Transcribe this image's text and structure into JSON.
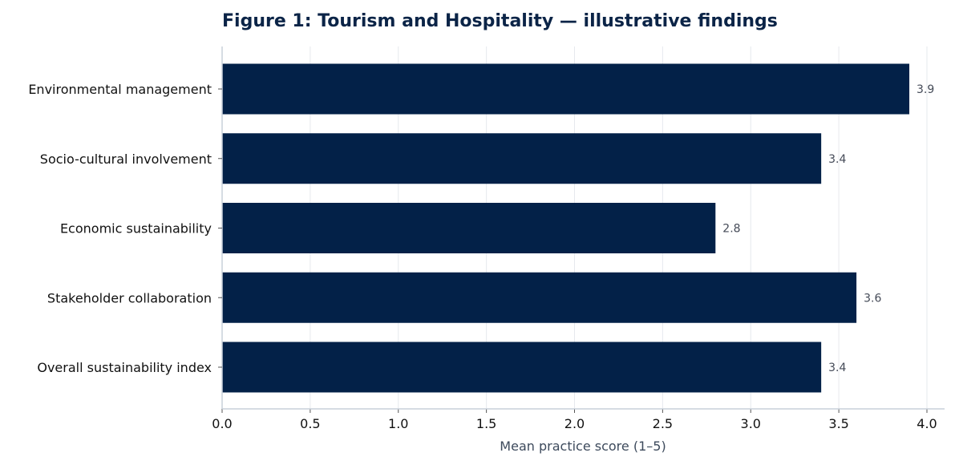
{
  "colors": {
    "bar": "#032148",
    "title": "#0b2447",
    "grid": "#e6e9ee",
    "axis": "#c9d0da",
    "axis_title": "#3d4a5c",
    "value_label": "#444a57"
  },
  "chart_data": {
    "type": "bar",
    "orientation": "horizontal",
    "title": "Figure 1: Tourism and Hospitality — illustrative findings",
    "xlabel": "Mean practice score (1–5)",
    "ylabel": "",
    "categories": [
      "Environmental management",
      "Socio-cultural involvement",
      "Economic sustainability",
      "Stakeholder collaboration",
      "Overall sustainability index"
    ],
    "values": [
      3.9,
      3.4,
      2.8,
      3.6,
      3.4
    ],
    "value_labels": [
      "3.9",
      "3.4",
      "2.8",
      "3.6",
      "3.4"
    ],
    "xlim": [
      0,
      4.1
    ],
    "x_ticks": [
      0.0,
      0.5,
      1.0,
      1.5,
      2.0,
      2.5,
      3.0,
      3.5,
      4.0
    ],
    "x_tick_labels": [
      "0.0",
      "0.5",
      "1.0",
      "1.5",
      "2.0",
      "2.5",
      "3.0",
      "3.5",
      "4.0"
    ],
    "grid": "vertical",
    "legend": "none"
  }
}
